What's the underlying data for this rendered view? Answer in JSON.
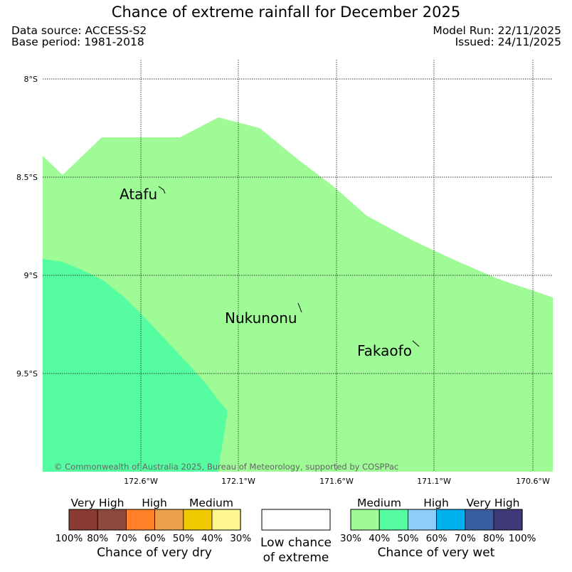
{
  "title": "Chance of extreme rainfall for December 2025",
  "meta": {
    "data_source": "Data source: ACCESS-S2",
    "base_period": "Base period: 1981-2018",
    "model_run": "Model Run: 22/11/2025",
    "issued": "Issued: 24/11/2025"
  },
  "map": {
    "lat_ticks": [
      "8°S",
      "8.5°S",
      "9°S",
      "9.5°S"
    ],
    "lon_ticks": [
      "172.6°W",
      "172.1°W",
      "171.6°W",
      "171.1°W",
      "170.6°W"
    ],
    "places": [
      "Atafu",
      "Nukunonu",
      "Fakaofo"
    ],
    "copyright": "© Commonwealth of Australia 2025, Bureau of Meteorology, supported by COSPPac",
    "fill_colors": {
      "medium_wet": "#9efb96",
      "medium_wet_higher": "#55fda0"
    }
  },
  "legend": {
    "dry": {
      "top_labels": [
        "Very High",
        "High",
        "Medium"
      ],
      "colors": [
        "#8b3a32",
        "#8b4a3c",
        "#ff8026",
        "#eba04a",
        "#f0c900",
        "#fff68f"
      ],
      "ticks": [
        "100%",
        "80%",
        "70%",
        "60%",
        "50%",
        "40%",
        "30%"
      ],
      "caption": "Chance of very dry"
    },
    "low": {
      "color": "#ffffff",
      "caption_line1": "Low chance",
      "caption_line2": "of extreme"
    },
    "wet": {
      "top_labels": [
        "Medium",
        "High",
        "Very High"
      ],
      "colors": [
        "#9efb96",
        "#55fda0",
        "#8ccef9",
        "#00b1f0",
        "#3a5fa0",
        "#3f3a7a"
      ],
      "ticks": [
        "30%",
        "40%",
        "50%",
        "60%",
        "70%",
        "80%",
        "100%"
      ],
      "caption": "Chance of very wet"
    }
  }
}
